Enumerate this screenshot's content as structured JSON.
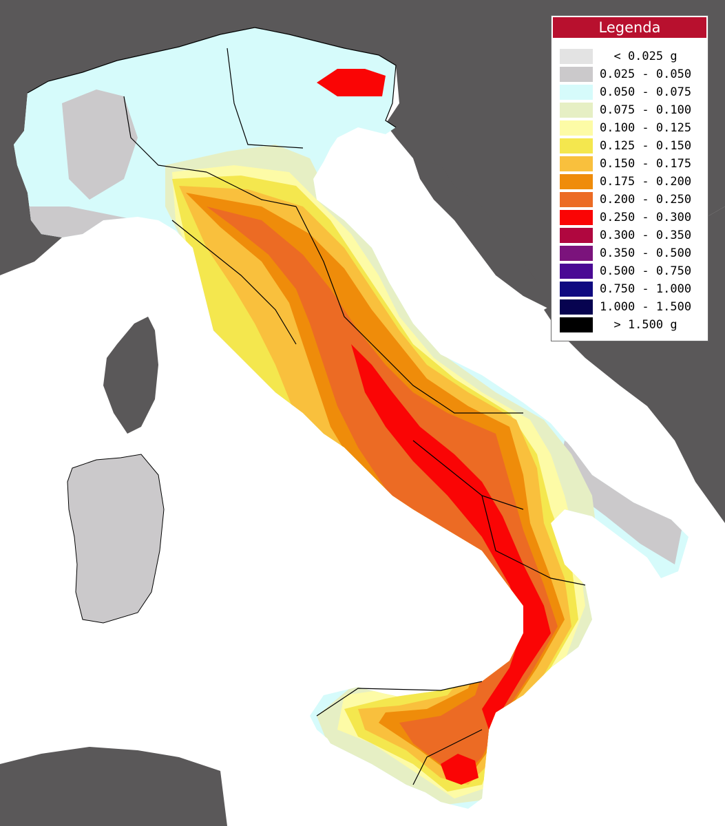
{
  "legend": {
    "title": "Legenda",
    "items": [
      {
        "label": "  < 0.025 g",
        "color": "#e3e3e3"
      },
      {
        "label": "0.025 - 0.050",
        "color": "#cbc9cb"
      },
      {
        "label": "0.050 - 0.075",
        "color": "#d6fbfb"
      },
      {
        "label": "0.075 - 0.100",
        "color": "#e6efc4"
      },
      {
        "label": "0.100 - 0.125",
        "color": "#fdfba6"
      },
      {
        "label": "0.125 - 0.150",
        "color": "#f4e74e"
      },
      {
        "label": "0.150 - 0.175",
        "color": "#f9c03d"
      },
      {
        "label": "0.175 - 0.200",
        "color": "#ef8c0a"
      },
      {
        "label": "0.200 - 0.250",
        "color": "#ec6b24"
      },
      {
        "label": "0.250 - 0.300",
        "color": "#fa0505"
      },
      {
        "label": "0.300 - 0.350",
        "color": "#b0073f"
      },
      {
        "label": "0.350 - 0.500",
        "color": "#7b137c"
      },
      {
        "label": "0.500 - 0.750",
        "color": "#4a0a94"
      },
      {
        "label": "0.750 - 1.000",
        "color": "#0f0a80"
      },
      {
        "label": "1.000 - 1.500",
        "color": "#070350"
      },
      {
        "label": "  > 1.500 g",
        "color": "#000000"
      }
    ]
  },
  "map_colors": {
    "sea": "#ffffff",
    "foreign_land": "#5a5859",
    "borders": "#000000"
  }
}
